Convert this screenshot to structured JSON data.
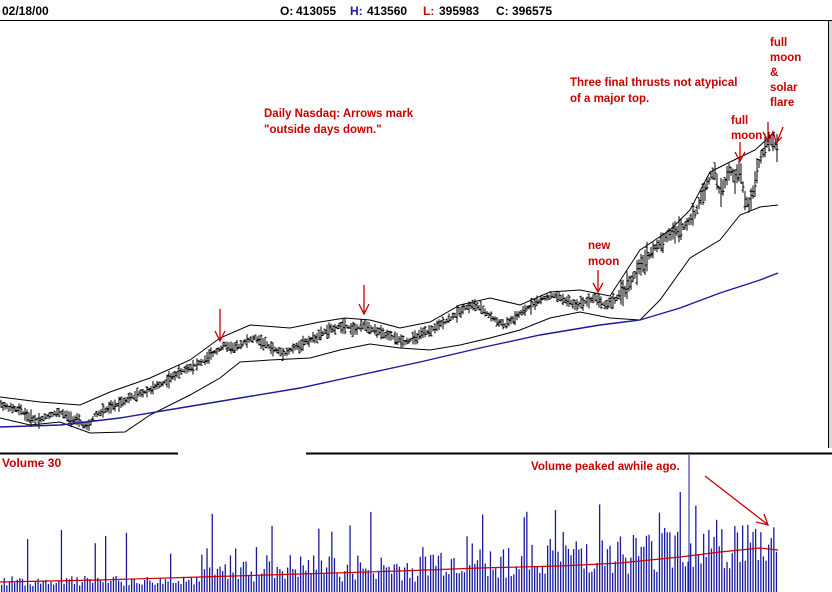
{
  "header": {
    "date": "02/18/00",
    "open_label": "O:",
    "open_value": "413055",
    "high_label": "H:",
    "high_value": "413560",
    "low_label": "L:",
    "low_value": "395983",
    "close_label": "C:",
    "close_value": "396575"
  },
  "volume_panel": {
    "title": "Volume 30"
  },
  "annotations": {
    "daily_line1": "Daily Nasdaq: Arrows mark",
    "daily_line2": "\"outside days down.\"",
    "thrusts_line1": "Three final thrusts not atypical",
    "thrusts_line2": "of a major top.",
    "new_moon_1": "new",
    "new_moon_2": "moon",
    "full_moon_a1": "full",
    "full_moon_a2": "moon",
    "full_moon_b1": "full",
    "full_moon_b2": "moon",
    "full_moon_b3": "&",
    "full_moon_b4": "solar",
    "full_moon_b5": "flare",
    "volume_note": "Volume peaked awhile ago."
  },
  "colors": {
    "annotation": "#c80000",
    "header_label": "#c80000",
    "price_bars": "#000000",
    "bollinger": "#000000",
    "moving_average": "#1a1aa0",
    "volume_bars": "#1a1aa0",
    "volume_average": "#c80000",
    "frame": "#000000"
  },
  "chart_data": {
    "type": "line",
    "series": [
      {
        "name": "",
        "kind": "daily price bars (approx. close path)",
        "points": [
          [
            0,
            404
          ],
          [
            10,
            408
          ],
          [
            20,
            410
          ],
          [
            30,
            418
          ],
          [
            40,
            420
          ],
          [
            50,
            415
          ],
          [
            60,
            412
          ],
          [
            70,
            418
          ],
          [
            80,
            422
          ],
          [
            88,
            428
          ],
          [
            95,
            415
          ],
          [
            110,
            408
          ],
          [
            130,
            398
          ],
          [
            150,
            390
          ],
          [
            165,
            382
          ],
          [
            180,
            372
          ],
          [
            195,
            365
          ],
          [
            205,
            360
          ],
          [
            215,
            352
          ],
          [
            225,
            345
          ],
          [
            235,
            348
          ],
          [
            245,
            342
          ],
          [
            255,
            338
          ],
          [
            265,
            344
          ],
          [
            275,
            350
          ],
          [
            285,
            353
          ],
          [
            295,
            348
          ],
          [
            305,
            342
          ],
          [
            315,
            338
          ],
          [
            325,
            332
          ],
          [
            335,
            328
          ],
          [
            345,
            325
          ],
          [
            355,
            330
          ],
          [
            365,
            325
          ],
          [
            375,
            330
          ],
          [
            385,
            335
          ],
          [
            395,
            338
          ],
          [
            405,
            342
          ],
          [
            415,
            338
          ],
          [
            425,
            333
          ],
          [
            435,
            328
          ],
          [
            445,
            322
          ],
          [
            455,
            315
          ],
          [
            465,
            308
          ],
          [
            475,
            305
          ],
          [
            485,
            312
          ],
          [
            495,
            320
          ],
          [
            505,
            325
          ],
          [
            515,
            318
          ],
          [
            525,
            310
          ],
          [
            535,
            303
          ],
          [
            545,
            298
          ],
          [
            555,
            295
          ],
          [
            565,
            300
          ],
          [
            575,
            305
          ],
          [
            585,
            302
          ],
          [
            595,
            298
          ],
          [
            605,
            305
          ],
          [
            615,
            300
          ],
          [
            625,
            290
          ],
          [
            635,
            275
          ],
          [
            645,
            260
          ],
          [
            655,
            248
          ],
          [
            665,
            238
          ],
          [
            675,
            232
          ],
          [
            685,
            225
          ],
          [
            695,
            215
          ],
          [
            700,
            200
          ],
          [
            705,
            190
          ],
          [
            710,
            178
          ],
          [
            715,
            172
          ],
          [
            720,
            195
          ],
          [
            725,
            182
          ],
          [
            730,
            170
          ],
          [
            735,
            180
          ],
          [
            740,
            168
          ],
          [
            745,
            200
          ],
          [
            750,
            205
          ],
          [
            755,
            180
          ],
          [
            760,
            160
          ],
          [
            765,
            148
          ],
          [
            770,
            140
          ],
          [
            775,
            145
          ],
          [
            778,
            150
          ]
        ]
      },
      {
        "name": "",
        "kind": "upper bollinger band",
        "points": [
          [
            0,
            397
          ],
          [
            40,
            402
          ],
          [
            80,
            405
          ],
          [
            110,
            392
          ],
          [
            150,
            378
          ],
          [
            190,
            360
          ],
          [
            220,
            338
          ],
          [
            250,
            325
          ],
          [
            290,
            328
          ],
          [
            320,
            322
          ],
          [
            345,
            318
          ],
          [
            370,
            320
          ],
          [
            400,
            328
          ],
          [
            430,
            322
          ],
          [
            460,
            305
          ],
          [
            490,
            298
          ],
          [
            520,
            305
          ],
          [
            550,
            292
          ],
          [
            580,
            290
          ],
          [
            610,
            296
          ],
          [
            640,
            250
          ],
          [
            670,
            230
          ],
          [
            690,
            210
          ],
          [
            710,
            172
          ],
          [
            730,
            162
          ],
          [
            755,
            150
          ],
          [
            775,
            132
          ]
        ]
      },
      {
        "name": "",
        "kind": "lower bollinger band",
        "points": [
          [
            0,
            418
          ],
          [
            30,
            425
          ],
          [
            60,
            422
          ],
          [
            90,
            433
          ],
          [
            125,
            432
          ],
          [
            150,
            415
          ],
          [
            190,
            395
          ],
          [
            220,
            378
          ],
          [
            240,
            362
          ],
          [
            270,
            360
          ],
          [
            310,
            358
          ],
          [
            340,
            350
          ],
          [
            370,
            344
          ],
          [
            400,
            348
          ],
          [
            430,
            350
          ],
          [
            460,
            345
          ],
          [
            490,
            338
          ],
          [
            520,
            330
          ],
          [
            550,
            318
          ],
          [
            580,
            312
          ],
          [
            610,
            318
          ],
          [
            640,
            320
          ],
          [
            660,
            300
          ],
          [
            690,
            258
          ],
          [
            720,
            240
          ],
          [
            740,
            215
          ],
          [
            760,
            207
          ],
          [
            778,
            205
          ]
        ]
      },
      {
        "name": "",
        "kind": "moving average",
        "points": [
          [
            0,
            427
          ],
          [
            60,
            425
          ],
          [
            120,
            418
          ],
          [
            180,
            408
          ],
          [
            240,
            398
          ],
          [
            300,
            388
          ],
          [
            360,
            375
          ],
          [
            420,
            362
          ],
          [
            480,
            348
          ],
          [
            540,
            335
          ],
          [
            600,
            325
          ],
          [
            640,
            320
          ],
          [
            680,
            308
          ],
          [
            720,
            293
          ],
          [
            760,
            280
          ],
          [
            778,
            273
          ]
        ]
      }
    ],
    "volume": {
      "title": "Volume 30",
      "note": "Volume peaked awhile ago."
    }
  }
}
